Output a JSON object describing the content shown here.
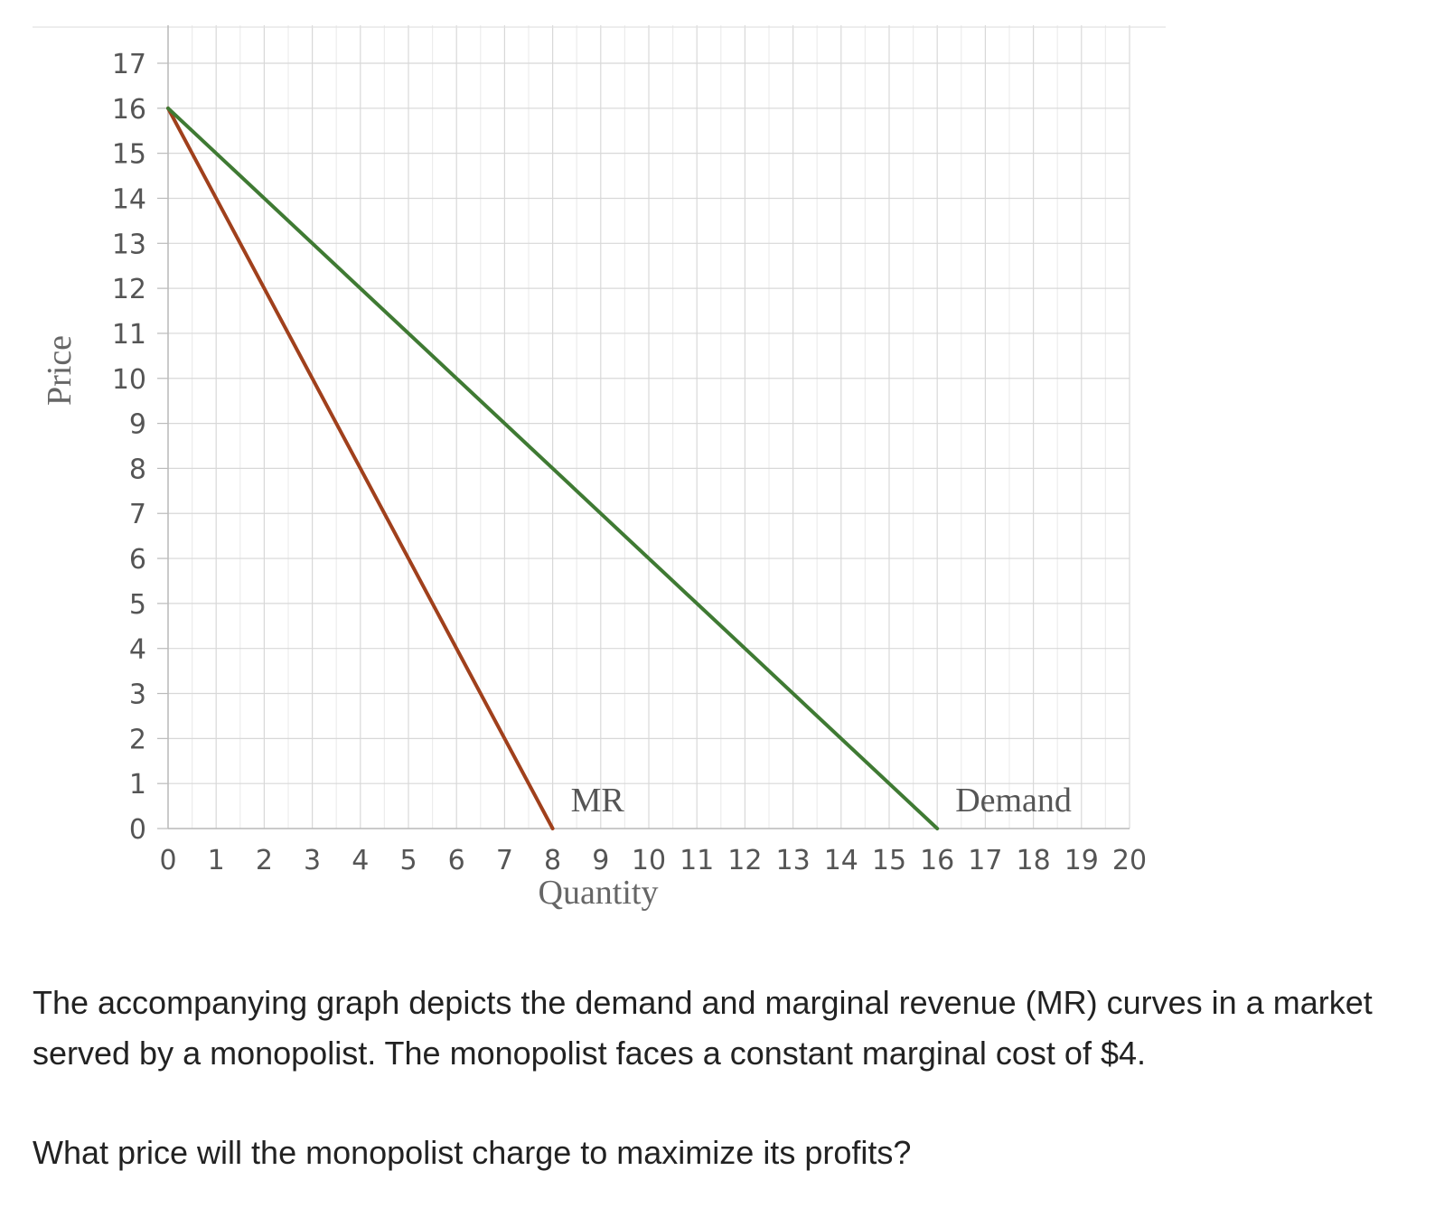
{
  "chart_data": {
    "type": "line",
    "xlabel": "Quantity",
    "ylabel": "Price",
    "xlim": [
      0,
      20
    ],
    "ylim": [
      0,
      17
    ],
    "x_ticks": [
      0,
      1,
      2,
      3,
      4,
      5,
      6,
      7,
      8,
      9,
      10,
      11,
      12,
      13,
      14,
      15,
      16,
      17,
      18,
      19,
      20
    ],
    "y_ticks": [
      0,
      1,
      2,
      3,
      4,
      5,
      6,
      7,
      8,
      9,
      10,
      11,
      12,
      13,
      14,
      15,
      16,
      17
    ],
    "grid": true,
    "series": [
      {
        "name": "MR",
        "color": "#a0401c",
        "x": [
          0,
          8
        ],
        "y": [
          16,
          0
        ]
      },
      {
        "name": "Demand",
        "color": "#3f7a33",
        "x": [
          0,
          16
        ],
        "y": [
          16,
          0
        ]
      }
    ]
  },
  "question": {
    "line1": "The accompanying graph depicts the demand and marginal revenue (MR) curves in a market served by a monopolist. The monopolist faces a constant marginal cost of $4.",
    "line2": "What price will the monopolist charge to maximize its profits?"
  }
}
